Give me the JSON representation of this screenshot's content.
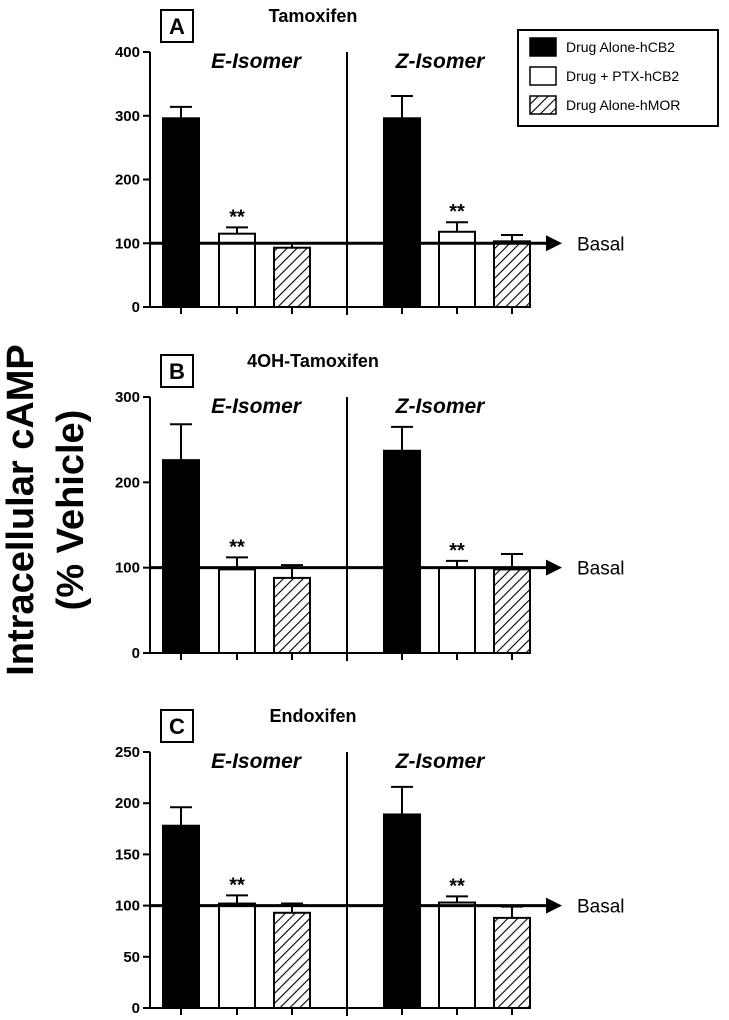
{
  "figure": {
    "y_axis_title_line1": "Intracellular cAMP",
    "y_axis_title_line2": "(% Vehicle)",
    "basal_label": "Basal",
    "legend": [
      {
        "label": "Drug Alone-hCB2",
        "fill": "solid-black"
      },
      {
        "label": "Drug + PTX-hCB2",
        "fill": "white"
      },
      {
        "label": "Drug Alone-hMOR",
        "fill": "hatched"
      }
    ]
  },
  "chart_data": [
    {
      "type": "bar",
      "panel_label": "A",
      "title": "Tamoxifen",
      "groups": [
        "E-Isomer",
        "Z-Isomer"
      ],
      "series": [
        {
          "name": "Drug Alone-hCB2",
          "values": [
            296,
            296
          ],
          "errors": [
            18,
            35
          ]
        },
        {
          "name": "Drug + PTX-hCB2",
          "values": [
            115,
            118
          ],
          "errors": [
            10,
            15
          ]
        },
        {
          "name": "Drug Alone-hMOR",
          "values": [
            93,
            103
          ],
          "errors": [
            7,
            10
          ]
        }
      ],
      "significance": [
        "**",
        "**"
      ],
      "significance_series": "Drug + PTX-hCB2",
      "ylim": [
        0,
        400
      ],
      "yticks": [
        "0",
        "100",
        "200",
        "300",
        "400"
      ],
      "basal": 100
    },
    {
      "type": "bar",
      "panel_label": "B",
      "title": "4OH-Tamoxifen",
      "groups": [
        "E-Isomer",
        "Z-Isomer"
      ],
      "series": [
        {
          "name": "Drug Alone-hCB2",
          "values": [
            226,
            237
          ],
          "errors": [
            42,
            28
          ]
        },
        {
          "name": "Drug + PTX-hCB2",
          "values": [
            98,
            100
          ],
          "errors": [
            14,
            8
          ]
        },
        {
          "name": "Drug Alone-hMOR",
          "values": [
            88,
            98
          ],
          "errors": [
            15,
            18
          ]
        }
      ],
      "significance": [
        "**",
        "**"
      ],
      "significance_series": "Drug + PTX-hCB2",
      "ylim": [
        0,
        300
      ],
      "yticks": [
        "0",
        "100",
        "200",
        "300"
      ],
      "basal": 100
    },
    {
      "type": "bar",
      "panel_label": "C",
      "title": "Endoxifen",
      "groups": [
        "E-Isomer",
        "Z-Isomer"
      ],
      "series": [
        {
          "name": "Drug Alone-hCB2",
          "values": [
            178,
            189
          ],
          "errors": [
            18,
            27
          ]
        },
        {
          "name": "Drug + PTX-hCB2",
          "values": [
            102,
            103
          ],
          "errors": [
            8,
            6
          ]
        },
        {
          "name": "Drug Alone-hMOR",
          "values": [
            93,
            88
          ],
          "errors": [
            9,
            11
          ]
        }
      ],
      "significance": [
        "**",
        "**"
      ],
      "significance_series": "Drug + PTX-hCB2",
      "ylim": [
        0,
        250
      ],
      "yticks": [
        "0",
        "50",
        "100",
        "150",
        "200",
        "250"
      ],
      "basal": 100
    }
  ]
}
